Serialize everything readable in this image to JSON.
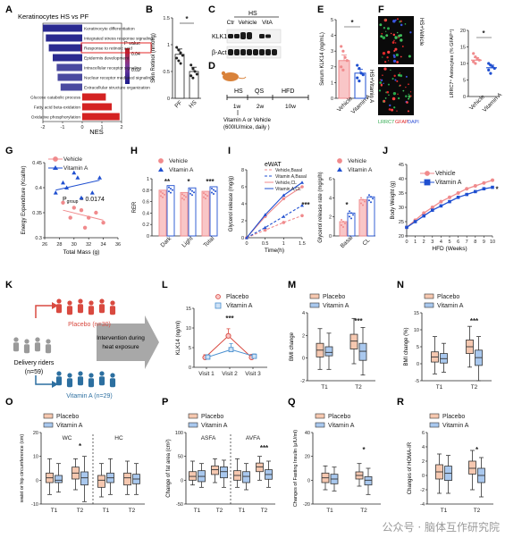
{
  "watermark": "公众号 · 脑体互作研究院",
  "colors": {
    "vehicle": "#f08a8c",
    "vitaminA": "#1f4fd0",
    "placebo": "#f6c8b0",
    "placeboEdge": "#333333",
    "vitABox": "#a9c8ee",
    "heatHigh": "#c81e1e",
    "heatLow": "#1a1a8c",
    "highlight": "#e01010",
    "riderRed": "#d94a40",
    "riderBlue": "#2c6fa0",
    "riderGray": "#9a9a9a"
  },
  "panels": {
    "A": {
      "letter": "A",
      "title": "Keratinocytes HS vs PF",
      "xlabel": "NES",
      "legend_title": "P value",
      "legend_ticks": [
        "0.04",
        "0.02"
      ]
    },
    "B": {
      "letter": "B",
      "ylabel": "Skin Retinol (nmol/g)",
      "sig": "*"
    },
    "C": {
      "letter": "C",
      "labels": [
        "Ctr",
        "Vehicle",
        "VitA"
      ],
      "group": "HS",
      "row1": "KLK14",
      "row2": "β-Actin"
    },
    "D": {
      "letter": "D",
      "phases": [
        "HS",
        "QS",
        "HFD"
      ],
      "durations": [
        "1w",
        "2w",
        "10w"
      ],
      "note1": "Vitamin A or Vehicle",
      "note2": "(600IU/mice, daily )"
    },
    "E": {
      "letter": "E",
      "ylabel": "Serum KLK14 (ng/mL)",
      "sig": "*"
    },
    "F": {
      "letter": "F",
      "img_labels": [
        "HS+Vehicle",
        "HS+Vitamin A"
      ],
      "stain_labels": [
        "LRRC7",
        "GFAP",
        "DAPI"
      ],
      "ylabel": "LRRC7⁺ Astrocytes (% GFAP⁺)",
      "sig": "*"
    },
    "G": {
      "letter": "G",
      "ylabel": "Energy Expenditure (Kcal/hr)",
      "xlabel": "Total Mass (g)",
      "annot": "P",
      "annot_sub": "group",
      "annot_val": " = 0.0174"
    },
    "H": {
      "letter": "H",
      "ylabel": "RER",
      "sig": [
        "**",
        "*",
        "***"
      ]
    },
    "I": {
      "letter": "I",
      "title": "eWAT",
      "ylabel": "Glycerol release (mg/g)",
      "xlabel": "Time(h)",
      "legend": [
        "Vehicle,Basal",
        "Vitamin A,Basal",
        "Vehicle,CL",
        "Vitamin A,CL"
      ],
      "sig": "***",
      "ylabel2": "Glycerol release rate (mg/g/h)",
      "sig2": "*"
    },
    "J": {
      "letter": "J",
      "ylabel": "Body Weight (g)",
      "xlabel": "HFD (Weeks)",
      "sig": "*"
    },
    "K": {
      "letter": "K",
      "placebo": "Placebo (n=30)",
      "vitamin": "Vitamin A (n=29)",
      "riders1": "Delivery riders",
      "riders2": "(n=59)",
      "arrow1": "Intervention during",
      "arrow2": "heat exposure"
    },
    "L": {
      "letter": "L",
      "ylabel": "KLK14 (ng/ml)",
      "sig": "***"
    },
    "M": {
      "letter": "M",
      "ylabel": "BMI change",
      "sig": "***"
    },
    "N": {
      "letter": "N",
      "ylabel": "BMI change (%)",
      "sig": "***"
    },
    "O": {
      "letter": "O",
      "ylabel": "waist or hip circumference (cm)",
      "groups": [
        "WC",
        "HC"
      ],
      "sig": "*"
    },
    "P": {
      "letter": "P",
      "ylabel": "Change of fat area (cm²)",
      "groups": [
        "ASFA",
        "AVFA"
      ],
      "sig": "***"
    },
    "Q": {
      "letter": "Q",
      "ylabel": "Changes of Fasting Insulin (μIU/ml)",
      "sig": "*"
    },
    "R": {
      "letter": "R",
      "ylabel": "Changes of HOMA-IR",
      "sig": "*"
    }
  },
  "chart_data": [
    {
      "id": "A",
      "type": "bar",
      "categories": [
        "Keratinocyte differentiation",
        "Integrated stress response signaling",
        "Response to retinoic acid",
        "Epidermis development",
        "Intracellular receptor signaling",
        "Nuclear receptor mediated signaling",
        "Extracellular structure organization",
        "Glucose catabolic process",
        "Fatty acid beta-oxidation",
        "Oxidative phosphorylation"
      ],
      "values": [
        -2.0,
        -1.85,
        -1.7,
        -1.5,
        -1.3,
        -1.25,
        -1.1,
        1.2,
        1.5,
        1.9
      ],
      "highlight_index": 2,
      "xlim": [
        -2,
        2
      ],
      "xticks": [
        -2,
        -1,
        0,
        1,
        2
      ],
      "legend_placement": "right"
    },
    {
      "id": "B",
      "type": "bar",
      "categories": [
        "PF",
        "HS"
      ],
      "values": [
        0.82,
        0.5
      ],
      "errors": [
        0.1,
        0.08
      ],
      "points": [
        [
          0.95,
          0.9,
          0.85,
          0.8,
          0.75,
          0.7,
          0.65
        ],
        [
          0.62,
          0.55,
          0.5,
          0.45,
          0.42,
          0.38
        ]
      ],
      "ylim": [
        0,
        1.5
      ],
      "yticks": [
        0,
        0.5,
        1.0,
        1.5
      ]
    },
    {
      "id": "E",
      "type": "bar",
      "categories": [
        "Vehicle",
        "Vitamin A"
      ],
      "values": [
        2.4,
        1.6
      ],
      "errors": [
        0.35,
        0.25
      ],
      "points": [
        [
          3.3,
          3.0,
          2.6,
          2.4,
          2.0,
          1.8
        ],
        [
          2.1,
          1.9,
          1.6,
          1.5,
          1.3,
          1.1
        ]
      ],
      "ylim": [
        0,
        5
      ],
      "yticks": [
        0,
        1,
        2,
        3,
        4,
        5
      ]
    },
    {
      "id": "F",
      "type": "bar",
      "categories": [
        "Vehicle",
        "Vitamin A"
      ],
      "values": [
        11,
        8.7
      ],
      "errors": [
        0.8,
        0.8
      ],
      "points": [
        [
          13,
          12,
          11.5,
          11,
          10.5,
          10
        ],
        [
          10,
          9.5,
          9,
          8.5,
          8,
          7
        ]
      ],
      "ylim": [
        0,
        20
      ],
      "yticks": [
        0,
        5,
        10,
        15,
        20
      ]
    },
    {
      "id": "G",
      "type": "scatter",
      "series": [
        {
          "name": "Vehicle",
          "x": [
            28.5,
            30,
            31,
            32,
            33,
            34,
            31.5,
            29.5
          ],
          "y": [
            0.37,
            0.36,
            0.355,
            0.34,
            0.35,
            0.33,
            0.32,
            0.34
          ]
        },
        {
          "name": "Vitamin A",
          "x": [
            27.5,
            29,
            30.5,
            31,
            32.5,
            33.5,
            28.5,
            30
          ],
          "y": [
            0.39,
            0.4,
            0.42,
            0.38,
            0.39,
            0.42,
            0.41,
            0.43
          ]
        }
      ],
      "xlim": [
        26,
        36
      ],
      "ylim": [
        0.3,
        0.45
      ],
      "xticks": [
        26,
        28,
        30,
        32,
        34,
        36
      ],
      "yticks": [
        0.3,
        0.35,
        0.4,
        0.45
      ]
    },
    {
      "id": "H",
      "type": "bar",
      "categories": [
        "Dark",
        "Light",
        "Total"
      ],
      "series": [
        {
          "name": "Vehicle",
          "values": [
            0.8,
            0.76,
            0.78
          ]
        },
        {
          "name": "Vitamin A",
          "values": [
            0.88,
            0.84,
            0.86
          ]
        }
      ],
      "ylim": [
        0,
        1.0
      ],
      "yticks": [
        0,
        0.2,
        0.4,
        0.6,
        0.8,
        1.0
      ],
      "legend_placement": "top"
    },
    {
      "id": "I1",
      "type": "line",
      "x": [
        0,
        0.5,
        1,
        1.5
      ],
      "series": [
        {
          "name": "Vehicle,Basal",
          "values": [
            0,
            0.9,
            1.8,
            2.6
          ]
        },
        {
          "name": "Vitamin A,Basal",
          "values": [
            0,
            1.2,
            2.5,
            3.8
          ]
        },
        {
          "name": "Vehicle,CL",
          "values": [
            0,
            2.5,
            4.6,
            6.0
          ]
        },
        {
          "name": "Vitamin A,CL",
          "values": [
            0,
            2.7,
            5.0,
            6.5
          ]
        }
      ],
      "xlim": [
        0,
        1.5
      ],
      "ylim": [
        0,
        8
      ],
      "xticks": [
        0,
        0.5,
        1,
        1.5
      ],
      "yticks": [
        0,
        2,
        4,
        6,
        8
      ],
      "legend_placement": "top-left"
    },
    {
      "id": "I2",
      "type": "bar",
      "categories": [
        "Basal",
        "CL"
      ],
      "series": [
        {
          "name": "Vehicle",
          "values": [
            1.5,
            3.8
          ]
        },
        {
          "name": "Vitamin A",
          "values": [
            2.4,
            4.1
          ]
        }
      ],
      "ylim": [
        0,
        6
      ],
      "yticks": [
        0,
        2,
        4,
        6
      ]
    },
    {
      "id": "J",
      "type": "line",
      "x": [
        0,
        1,
        2,
        3,
        4,
        5,
        6,
        7,
        8,
        9,
        10
      ],
      "series": [
        {
          "name": "Vehicle",
          "values": [
            23,
            25.5,
            28,
            30,
            32,
            33.5,
            35,
            36.5,
            37.5,
            38.5,
            39.5
          ]
        },
        {
          "name": "Vitamin A",
          "values": [
            23,
            25,
            27,
            29,
            30.5,
            32,
            33.5,
            34.5,
            35.5,
            36.5,
            37
          ]
        }
      ],
      "ylim": [
        20,
        45
      ],
      "yticks": [
        20,
        25,
        30,
        35,
        40,
        45
      ],
      "xticks": [
        0,
        1,
        2,
        3,
        4,
        5,
        6,
        7,
        8,
        9,
        10
      ],
      "legend_placement": "top-left"
    },
    {
      "id": "L",
      "type": "line",
      "x": [
        "Visit 1",
        "Visit 2",
        "Visit 3"
      ],
      "series": [
        {
          "name": "Placebo",
          "values": [
            2.5,
            8,
            2.5
          ],
          "errors": [
            0.7,
            1.8,
            0.8
          ]
        },
        {
          "name": "Vitamin A",
          "values": [
            2.6,
            4.5,
            2.8
          ],
          "errors": [
            0.6,
            1.5,
            0.6
          ]
        }
      ],
      "ylim": [
        0,
        15
      ],
      "yticks": [
        0,
        5,
        10,
        15
      ],
      "legend_placement": "top-right"
    },
    {
      "id": "M",
      "type": "box",
      "categories": [
        "T1",
        "T2"
      ],
      "series": [
        {
          "name": "Placebo",
          "boxes": [
            [
              -1,
              0.1,
              0.7,
              1.3,
              2.6
            ],
            [
              -0.5,
              0.8,
              1.5,
              2.1,
              3.5
            ]
          ]
        },
        {
          "name": "Vitamin A",
          "boxes": [
            [
              -1,
              0.2,
              0.5,
              1,
              2.2
            ],
            [
              -1.5,
              -0.2,
              0.6,
              1.3,
              2.7
            ]
          ]
        }
      ],
      "ylim": [
        -2,
        4
      ],
      "yticks": [
        -2,
        0,
        2,
        4
      ]
    },
    {
      "id": "N",
      "type": "box",
      "categories": [
        "T1",
        "T2"
      ],
      "series": [
        {
          "name": "Placebo",
          "boxes": [
            [
              -3,
              0.5,
              2,
              3.5,
              8
            ],
            [
              -1,
              3,
              5,
              7,
              11
            ]
          ]
        },
        {
          "name": "Vitamin A",
          "boxes": [
            [
              -2.5,
              0.2,
              1.5,
              3,
              6
            ],
            [
              -5,
              -0.5,
              1.8,
              4,
              8
            ]
          ]
        }
      ],
      "ylim": [
        -5,
        15
      ],
      "yticks": [
        -5,
        0,
        5,
        10,
        15
      ]
    },
    {
      "id": "O",
      "type": "box",
      "categories": [
        "T1",
        "T2",
        "T1",
        "T2"
      ],
      "series": [
        {
          "name": "Placebo",
          "boxes": [
            [
              -6,
              -1,
              1,
              3,
              9
            ],
            [
              -4,
              0.5,
              3,
              5.5,
              9
            ],
            [
              -7,
              -3,
              0,
              2,
              7
            ],
            [
              -6,
              -2,
              1,
              3,
              8
            ]
          ]
        },
        {
          "name": "Vitamin A",
          "boxes": [
            [
              -5,
              -1,
              0,
              2,
              7
            ],
            [
              -9,
              -2,
              1,
              3.5,
              10
            ],
            [
              -6,
              -1,
              1,
              3,
              9
            ],
            [
              -6,
              -1.5,
              0.5,
              2.5,
              7
            ]
          ]
        }
      ],
      "ylim": [
        -10,
        20
      ],
      "yticks": [
        -10,
        0,
        10,
        20
      ]
    },
    {
      "id": "P",
      "type": "box",
      "categories": [
        "T1",
        "T2",
        "T1",
        "T2"
      ],
      "series": [
        {
          "name": "Placebo",
          "boxes": [
            [
              -10,
              0,
              8,
              18,
              40
            ],
            [
              -5,
              12,
              22,
              30,
              45
            ],
            [
              -15,
              0,
              10,
              20,
              45
            ],
            [
              0,
              18,
              28,
              36,
              50
            ]
          ]
        },
        {
          "name": "Vitamin A",
          "boxes": [
            [
              -15,
              -3,
              8,
              20,
              35
            ],
            [
              -15,
              5,
              18,
              28,
              42
            ],
            [
              -20,
              -5,
              8,
              18,
              35
            ],
            [
              -15,
              2,
              12,
              22,
              40
            ]
          ]
        }
      ],
      "ylim": [
        -50,
        100
      ],
      "yticks": [
        -50,
        0,
        50,
        100
      ]
    },
    {
      "id": "Q",
      "type": "box",
      "categories": [
        "T1",
        "T2"
      ],
      "series": [
        {
          "name": "Placebo",
          "boxes": [
            [
              -8,
              -2,
              2,
              6,
              12
            ],
            [
              -5,
              1,
              4,
              7,
              14
            ]
          ]
        },
        {
          "name": "Vitamin A",
          "boxes": [
            [
              -9,
              -3,
              1,
              5,
              11
            ],
            [
              -12,
              -4,
              0,
              3,
              10
            ]
          ]
        }
      ],
      "ylim": [
        -20,
        40
      ],
      "yticks": [
        -20,
        0,
        20,
        40
      ]
    },
    {
      "id": "R",
      "type": "box",
      "categories": [
        "T1",
        "T2"
      ],
      "series": [
        {
          "name": "Placebo",
          "boxes": [
            [
              -2.5,
              -0.5,
              0.5,
              1.5,
              3
            ],
            [
              -2,
              0.2,
              1,
              2,
              3.5
            ]
          ]
        },
        {
          "name": "Vitamin A",
          "boxes": [
            [
              -2.5,
              -0.7,
              0.3,
              1.3,
              2.8
            ],
            [
              -3,
              -1,
              0,
              1,
              2.5
            ]
          ]
        }
      ],
      "ylim": [
        -4,
        6
      ],
      "yticks": [
        -4,
        -2,
        0,
        2,
        4,
        6
      ]
    }
  ]
}
